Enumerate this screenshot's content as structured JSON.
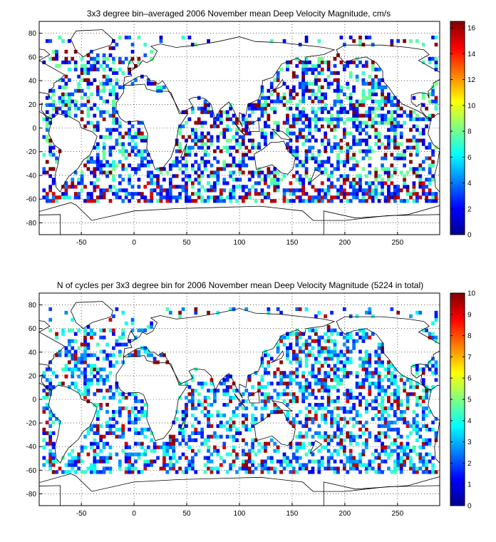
{
  "chart_data": [
    {
      "type": "heatmap",
      "title": "3x3 degree bin–averaged 2006 November mean Deep Velocity Magnitude, cm/s",
      "xlabel": "",
      "ylabel": "",
      "xlim": [
        -90,
        290
      ],
      "ylim": [
        -90,
        90
      ],
      "xticks": [
        -50,
        0,
        50,
        100,
        150,
        200,
        250
      ],
      "yticks": [
        -80,
        -60,
        -40,
        -20,
        0,
        20,
        40,
        60,
        80
      ],
      "grid": true,
      "bin_size_deg": 3,
      "colorbar": {
        "min": 0,
        "max": 16.5,
        "ticks": [
          0,
          2,
          4,
          6,
          8,
          10,
          12,
          14,
          16
        ],
        "colormap": "jet"
      }
    },
    {
      "type": "heatmap",
      "title": "N of cycles per 3x3 degree bin for 2006 November mean Deep Velocity Magnitude (5224 in total)",
      "xlabel": "",
      "ylabel": "",
      "xlim": [
        -90,
        290
      ],
      "ylim": [
        -90,
        90
      ],
      "xticks": [
        -50,
        0,
        50,
        100,
        150,
        200,
        250
      ],
      "yticks": [
        -80,
        -60,
        -40,
        -20,
        0,
        20,
        40,
        60,
        80
      ],
      "grid": true,
      "bin_size_deg": 3,
      "colorbar": {
        "min": 0,
        "max": 10,
        "ticks": [
          0,
          1,
          2,
          3,
          4,
          5,
          6,
          7,
          8,
          9,
          10
        ],
        "colormap": "jet"
      }
    }
  ]
}
